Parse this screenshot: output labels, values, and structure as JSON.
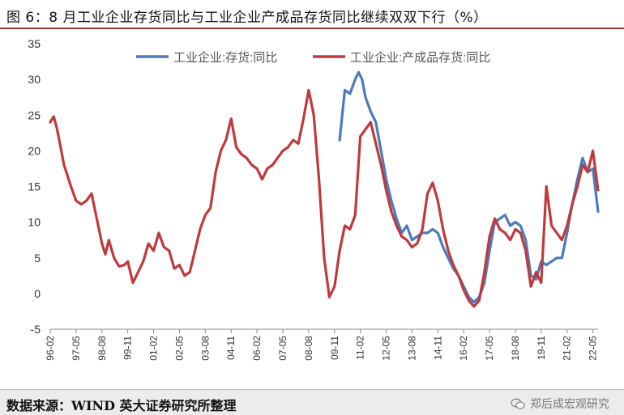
{
  "header": {
    "title": "图 6：8 月工业企业存货同比与工业企业产成品存货同比继续双双下行（%）"
  },
  "footer": {
    "source": "数据来源：WIND  英大证券研究所整理",
    "watermark": "郑后成宏观研究"
  },
  "colors": {
    "series1": "#4a7bbf",
    "series2": "#c0393b",
    "title_rule": "#a33a3a"
  },
  "icons": {
    "watermark": "wechat-icon"
  },
  "chart_data": {
    "type": "line",
    "title": "",
    "xlabel": "",
    "ylabel": "",
    "ylim": [
      -5,
      35
    ],
    "yticks": [
      -5,
      0,
      5,
      10,
      15,
      20,
      25,
      30,
      35
    ],
    "xticks": [
      "96-02",
      "97-05",
      "98-08",
      "99-11",
      "01-02",
      "02-05",
      "03-08",
      "04-11",
      "06-02",
      "07-05",
      "08-08",
      "09-11",
      "11-02",
      "12-05",
      "13-08",
      "14-11",
      "16-02",
      "17-05",
      "18-08",
      "19-11",
      "21-02",
      "22-05"
    ],
    "x_start": "1996-02",
    "x_end": "2022-08",
    "grid": false,
    "legend_position": "top-center",
    "series": [
      {
        "name": "工业企业:存货:同比",
        "color": "#4a7bbf",
        "points": [
          [
            "2010-02",
            21.5
          ],
          [
            "2010-05",
            28.5
          ],
          [
            "2010-08",
            28.0
          ],
          [
            "2010-11",
            30.0
          ],
          [
            "2011-01",
            31.0
          ],
          [
            "2011-03",
            30.0
          ],
          [
            "2011-05",
            27.5
          ],
          [
            "2011-08",
            25.5
          ],
          [
            "2011-11",
            24.0
          ],
          [
            "2012-02",
            20.0
          ],
          [
            "2012-05",
            16.0
          ],
          [
            "2012-08",
            13.0
          ],
          [
            "2012-11",
            10.5
          ],
          [
            "2013-02",
            8.5
          ],
          [
            "2013-05",
            9.5
          ],
          [
            "2013-08",
            7.5
          ],
          [
            "2013-11",
            8.0
          ],
          [
            "2014-02",
            8.5
          ],
          [
            "2014-05",
            8.5
          ],
          [
            "2014-08",
            9.0
          ],
          [
            "2014-11",
            8.5
          ],
          [
            "2015-02",
            6.5
          ],
          [
            "2015-05",
            5.0
          ],
          [
            "2015-08",
            3.5
          ],
          [
            "2015-11",
            2.5
          ],
          [
            "2016-02",
            1.0
          ],
          [
            "2016-05",
            -0.5
          ],
          [
            "2016-08",
            -1.2
          ],
          [
            "2016-11",
            -0.5
          ],
          [
            "2017-02",
            1.5
          ],
          [
            "2017-05",
            6.0
          ],
          [
            "2017-08",
            10.0
          ],
          [
            "2017-11",
            10.5
          ],
          [
            "2018-02",
            11.0
          ],
          [
            "2018-05",
            9.5
          ],
          [
            "2018-08",
            10.0
          ],
          [
            "2018-11",
            9.5
          ],
          [
            "2019-02",
            7.5
          ],
          [
            "2019-05",
            2.5
          ],
          [
            "2019-08",
            2.0
          ],
          [
            "2019-11",
            4.5
          ],
          [
            "2020-02",
            4.0
          ],
          [
            "2020-05",
            4.5
          ],
          [
            "2020-08",
            5.0
          ],
          [
            "2020-11",
            5.0
          ],
          [
            "2021-02",
            8.5
          ],
          [
            "2021-05",
            12.5
          ],
          [
            "2021-08",
            16.0
          ],
          [
            "2021-11",
            19.0
          ],
          [
            "2022-02",
            17.0
          ],
          [
            "2022-05",
            17.5
          ],
          [
            "2022-08",
            11.5
          ]
        ]
      },
      {
        "name": "工业企业:产成品存货:同比",
        "color": "#c0393b",
        "points": [
          [
            "1996-02",
            24.0
          ],
          [
            "1996-04",
            24.8
          ],
          [
            "1996-06",
            23.0
          ],
          [
            "1996-08",
            20.5
          ],
          [
            "1996-10",
            18.0
          ],
          [
            "1996-12",
            16.5
          ],
          [
            "1997-02",
            15.0
          ],
          [
            "1997-05",
            13.0
          ],
          [
            "1997-08",
            12.5
          ],
          [
            "1997-11",
            13.0
          ],
          [
            "1998-02",
            14.0
          ],
          [
            "1998-05",
            10.5
          ],
          [
            "1998-08",
            7.0
          ],
          [
            "1998-10",
            5.5
          ],
          [
            "1998-12",
            7.5
          ],
          [
            "1999-03",
            5.0
          ],
          [
            "1999-06",
            3.8
          ],
          [
            "1999-09",
            4.0
          ],
          [
            "1999-11",
            4.5
          ],
          [
            "2000-02",
            1.5
          ],
          [
            "2000-05",
            3.0
          ],
          [
            "2000-08",
            4.5
          ],
          [
            "2000-11",
            7.0
          ],
          [
            "2001-02",
            6.0
          ],
          [
            "2001-05",
            8.5
          ],
          [
            "2001-08",
            6.5
          ],
          [
            "2001-11",
            6.0
          ],
          [
            "2002-02",
            3.5
          ],
          [
            "2002-05",
            4.0
          ],
          [
            "2002-08",
            2.5
          ],
          [
            "2002-11",
            3.0
          ],
          [
            "2003-02",
            6.0
          ],
          [
            "2003-05",
            9.0
          ],
          [
            "2003-08",
            11.0
          ],
          [
            "2003-11",
            12.0
          ],
          [
            "2004-02",
            17.0
          ],
          [
            "2004-05",
            20.0
          ],
          [
            "2004-08",
            21.5
          ],
          [
            "2004-11",
            24.5
          ],
          [
            "2005-02",
            20.5
          ],
          [
            "2005-05",
            19.5
          ],
          [
            "2005-08",
            19.0
          ],
          [
            "2005-11",
            18.0
          ],
          [
            "2006-02",
            17.5
          ],
          [
            "2006-05",
            16.0
          ],
          [
            "2006-08",
            17.5
          ],
          [
            "2006-11",
            18.0
          ],
          [
            "2007-02",
            19.0
          ],
          [
            "2007-05",
            20.0
          ],
          [
            "2007-08",
            20.5
          ],
          [
            "2007-11",
            21.5
          ],
          [
            "2008-02",
            21.0
          ],
          [
            "2008-05",
            24.5
          ],
          [
            "2008-08",
            28.5
          ],
          [
            "2008-11",
            25.0
          ],
          [
            "2009-02",
            16.0
          ],
          [
            "2009-05",
            5.0
          ],
          [
            "2009-08",
            -0.5
          ],
          [
            "2009-11",
            1.0
          ],
          [
            "2010-02",
            6.0
          ],
          [
            "2010-05",
            9.5
          ],
          [
            "2010-08",
            9.0
          ],
          [
            "2010-11",
            11.0
          ],
          [
            "2011-02",
            22.0
          ],
          [
            "2011-05",
            23.0
          ],
          [
            "2011-08",
            24.0
          ],
          [
            "2011-11",
            21.0
          ],
          [
            "2012-02",
            18.0
          ],
          [
            "2012-05",
            14.5
          ],
          [
            "2012-08",
            11.5
          ],
          [
            "2012-11",
            9.5
          ],
          [
            "2013-02",
            8.0
          ],
          [
            "2013-05",
            7.5
          ],
          [
            "2013-08",
            6.5
          ],
          [
            "2013-11",
            7.0
          ],
          [
            "2014-02",
            9.0
          ],
          [
            "2014-05",
            14.0
          ],
          [
            "2014-08",
            15.5
          ],
          [
            "2014-11",
            13.0
          ],
          [
            "2015-02",
            9.0
          ],
          [
            "2015-05",
            6.0
          ],
          [
            "2015-08",
            4.0
          ],
          [
            "2015-11",
            2.5
          ],
          [
            "2016-02",
            0.5
          ],
          [
            "2016-05",
            -1.0
          ],
          [
            "2016-08",
            -1.8
          ],
          [
            "2016-11",
            -1.0
          ],
          [
            "2017-02",
            3.0
          ],
          [
            "2017-05",
            8.0
          ],
          [
            "2017-08",
            10.5
          ],
          [
            "2017-11",
            9.0
          ],
          [
            "2018-02",
            8.5
          ],
          [
            "2018-05",
            7.5
          ],
          [
            "2018-08",
            9.0
          ],
          [
            "2018-11",
            8.5
          ],
          [
            "2019-02",
            6.0
          ],
          [
            "2019-05",
            1.0
          ],
          [
            "2019-08",
            3.0
          ],
          [
            "2019-11",
            1.5
          ],
          [
            "2020-02",
            15.0
          ],
          [
            "2020-05",
            9.5
          ],
          [
            "2020-08",
            8.5
          ],
          [
            "2020-11",
            7.5
          ],
          [
            "2021-02",
            9.5
          ],
          [
            "2021-05",
            12.5
          ],
          [
            "2021-08",
            15.0
          ],
          [
            "2021-11",
            18.0
          ],
          [
            "2022-02",
            17.0
          ],
          [
            "2022-05",
            20.0
          ],
          [
            "2022-08",
            14.5
          ]
        ]
      }
    ]
  }
}
